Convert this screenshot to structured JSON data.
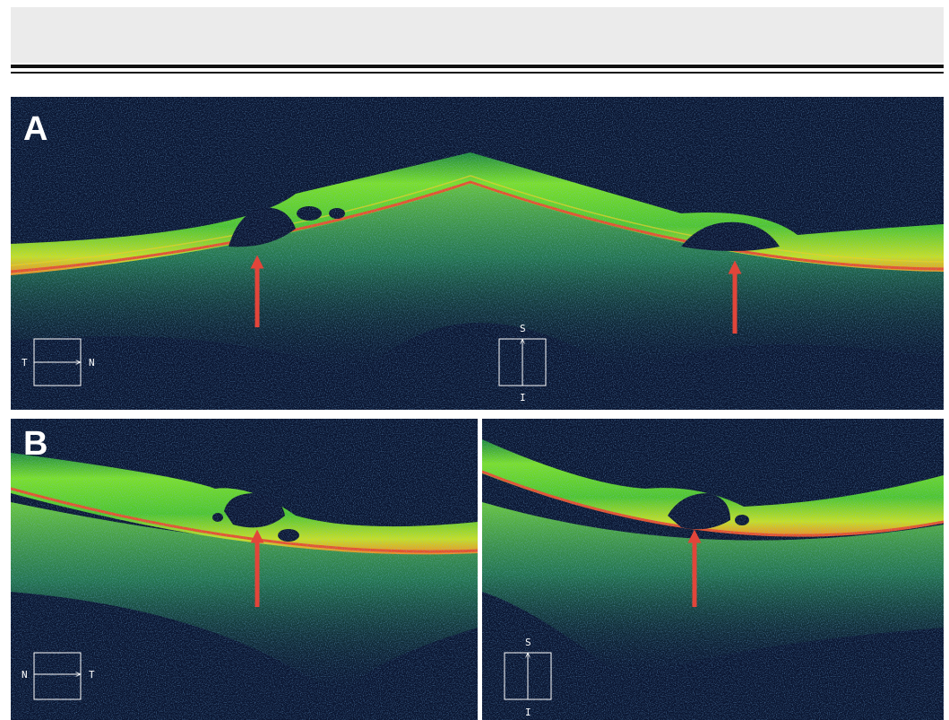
{
  "panels": [
    {
      "label": "A",
      "left_scan": {
        "start": "T",
        "end": "N"
      },
      "right_scan": {
        "top": "S",
        "bottom": "I"
      }
    },
    {
      "label": "B",
      "left_scan": {
        "start": "N",
        "end": "T"
      },
      "right_scan": {
        "top": "S",
        "bottom": "I"
      }
    }
  ]
}
